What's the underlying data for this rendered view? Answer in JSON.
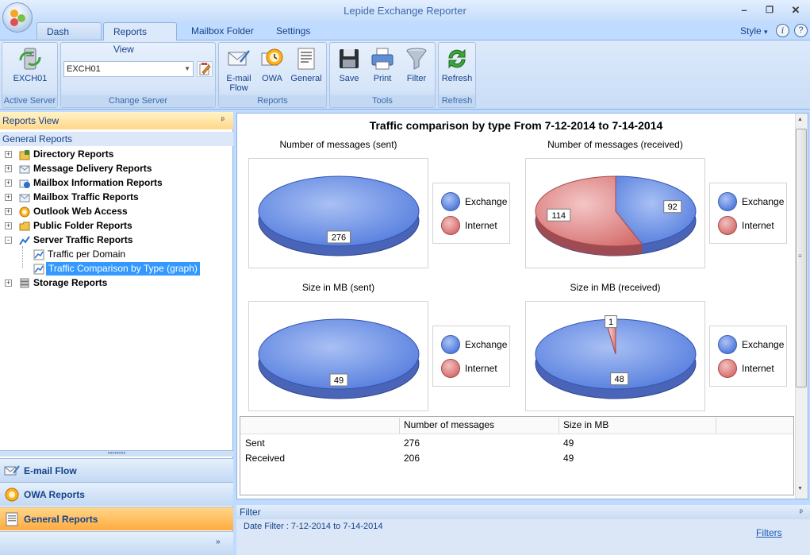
{
  "app": {
    "title": "Lepide Exchange Reporter"
  },
  "window_controls": {
    "minimize": "–",
    "maximize": "❐",
    "close": "✕"
  },
  "tabs": [
    {
      "label": "Dash View",
      "active": false
    },
    {
      "label": "Reports View",
      "active": true
    },
    {
      "label": "Mailbox Folder",
      "active": false
    },
    {
      "label": "Settings",
      "active": false
    }
  ],
  "style_menu": {
    "label": "Style",
    "arrow": "▾",
    "info_icon": "i",
    "help_icon": "?"
  },
  "ribbon": {
    "active_server": {
      "button_label": "EXCH01",
      "group_label": "Active Server",
      "icon": "server-refresh-icon"
    },
    "change_server": {
      "selected_value": "EXCH01",
      "group_label": "Change Server"
    },
    "reports": {
      "group_label": "Reports",
      "buttons": [
        {
          "label": "E-mail\nFlow",
          "line1": "E-mail",
          "line2": "Flow",
          "icon": "email-flow-icon"
        },
        {
          "label": "OWA",
          "icon": "owa-icon"
        },
        {
          "label": "General",
          "icon": "general-report-icon"
        }
      ]
    },
    "tools": {
      "group_label": "Tools",
      "buttons": [
        {
          "label": "Save",
          "icon": "floppy-save-icon"
        },
        {
          "label": "Print",
          "icon": "printer-icon"
        },
        {
          "label": "Filter",
          "icon": "funnel-filter-icon"
        }
      ]
    },
    "refresh": {
      "group_label": "Refresh",
      "button_label": "Refresh",
      "icon": "refresh-arrows-icon"
    }
  },
  "left_panel": {
    "header": "Reports View",
    "pin": "ᵖ",
    "section": "General Reports",
    "tree": [
      {
        "label": "Directory Reports",
        "expander": "+",
        "bold": true
      },
      {
        "label": "Message Delivery Reports",
        "expander": "+",
        "bold": true
      },
      {
        "label": "Mailbox Information Reports",
        "expander": "+",
        "bold": true
      },
      {
        "label": "Mailbox Traffic Reports",
        "expander": "+",
        "bold": true
      },
      {
        "label": "Outlook Web Access",
        "expander": "+",
        "bold": true
      },
      {
        "label": "Public Folder Reports",
        "expander": "+",
        "bold": true
      },
      {
        "label": "Server Traffic Reports",
        "expander": "-",
        "bold": true
      },
      {
        "label": "Traffic per Domain",
        "child": true
      },
      {
        "label": "Traffic Comparison by Type (graph)",
        "child": true,
        "selected": true
      },
      {
        "label": "Storage Reports",
        "expander": "+",
        "bold": true
      }
    ],
    "splitter_grip": "••••••••",
    "nav_buttons": [
      {
        "label": "E-mail Flow",
        "active": false,
        "icon": "email-flow-icon"
      },
      {
        "label": "OWA Reports",
        "active": false,
        "icon": "owa-icon"
      },
      {
        "label": "General Reports",
        "active": true,
        "icon": "general-report-icon"
      }
    ],
    "nav_chevron": "»"
  },
  "report": {
    "title": "Traffic comparison by type From 7-12-2014 to 7-14-2014",
    "legend": {
      "exchange": "Exchange",
      "internet": "Internet"
    },
    "colors": {
      "exchange": "#4f79dc",
      "internet": "#d66f6f"
    }
  },
  "chart_data": [
    {
      "type": "pie",
      "title": "Number of messages (sent)",
      "categories": [
        "Exchange",
        "Internet"
      ],
      "values": [
        276,
        0
      ],
      "labels": [
        "276"
      ]
    },
    {
      "type": "pie",
      "title": "Number of messages (received)",
      "categories": [
        "Exchange",
        "Internet"
      ],
      "values": [
        92,
        114
      ],
      "labels": [
        "92",
        "114"
      ]
    },
    {
      "type": "pie",
      "title": "Size in MB (sent)",
      "categories": [
        "Exchange",
        "Internet"
      ],
      "values": [
        49,
        0
      ],
      "labels": [
        "49"
      ]
    },
    {
      "type": "pie",
      "title": "Size in MB (received)",
      "categories": [
        "Exchange",
        "Internet"
      ],
      "values": [
        48,
        1
      ],
      "labels": [
        "48",
        "1"
      ]
    }
  ],
  "table": {
    "headers": [
      "",
      "Number of messages",
      "Size in MB"
    ],
    "rows": [
      [
        "Sent",
        "276",
        "49"
      ],
      [
        "Received",
        "206",
        "49"
      ]
    ]
  },
  "filter": {
    "header": "Filter",
    "pin": "ᵖ",
    "date_filter": "Date Filter :  7-12-2014 to 7-14-2014",
    "link": "Filters"
  }
}
